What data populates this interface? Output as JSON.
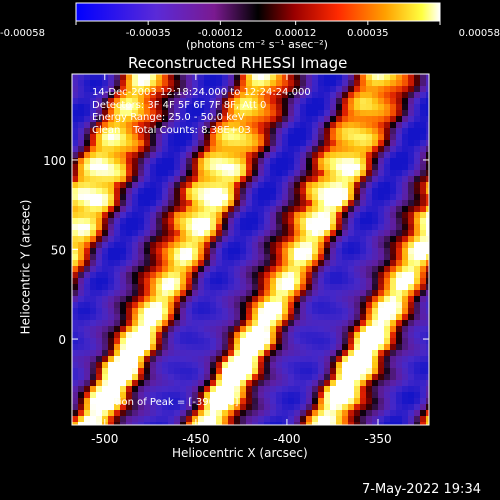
{
  "colorbar": {
    "ticks": [
      "-0.00058",
      "-0.00035",
      "-0.00012",
      "0.00012",
      "0.00035",
      "0.00058"
    ],
    "unit": "(photons cm⁻² s⁻¹ asec⁻²)",
    "range": [
      -0.00058,
      0.00058
    ]
  },
  "chart_data": {
    "type": "heatmap",
    "title": "Reconstructed RHESSI Image",
    "xlabel": "Heliocentric X (arcsec)",
    "ylabel": "Heliocentric Y (arcsec)",
    "xlim": [
      -518,
      -322
    ],
    "ylim": [
      -48,
      148
    ],
    "xticks": [
      -500,
      -450,
      -400,
      -350
    ],
    "yticks": [
      0,
      50,
      100
    ],
    "xtick_labels": [
      "-500",
      "-450",
      "-400",
      "-350"
    ],
    "ytick_labels": [
      "0",
      "50",
      "100"
    ],
    "color_scale": "hot-with-negative-purple",
    "annotations": [
      "14-Dec-2003 12:18:24.000 to 12:24:24.000",
      "Detectors: 3F 4F 5F 6F 7F 8F, Att 0",
      "Energy Range: 25.0 - 50.0 keV",
      "Clean    Total Counts: 8.38E+03"
    ],
    "peak_text": "Position of Peak = [-390,-41]",
    "peak_position": [
      -390,
      -41
    ]
  },
  "footer": {
    "timestamp": "7-May-2022 19:34"
  }
}
